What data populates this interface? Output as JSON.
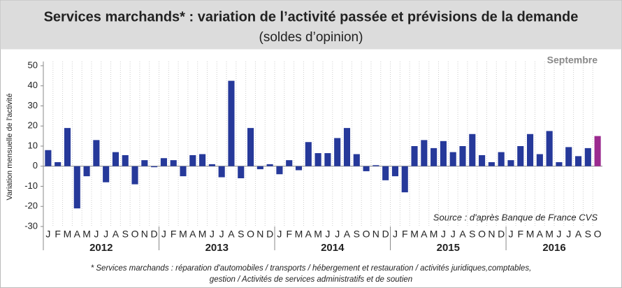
{
  "chart_data": {
    "type": "bar",
    "title": "Services marchands* : variation de l’activité passée et prévisions de la demande",
    "subtitle": "(soldes d’opinion)",
    "annotation": "Septembre",
    "ylabel": "Variation mensuelle de l'activité",
    "source": "Source : d'après Banque de France CVS",
    "footnote": [
      "* Services marchands : réparation d'automobiles / transports / hébergement et restauration / activités juridiques,comptables,",
      "gestion / Activités de services administratifs et de soutien"
    ],
    "categories": [
      "J",
      "F",
      "M",
      "A",
      "M",
      "J",
      "J",
      "A",
      "S",
      "O",
      "N",
      "D",
      "J",
      "F",
      "M",
      "A",
      "M",
      "J",
      "J",
      "A",
      "S",
      "O",
      "N",
      "D",
      "J",
      "F",
      "M",
      "A",
      "M",
      "J",
      "J",
      "A",
      "S",
      "O",
      "N",
      "D",
      "J",
      "F",
      "M",
      "A",
      "M",
      "J",
      "J",
      "A",
      "S",
      "O",
      "N",
      "D",
      "J",
      "F",
      "M",
      "A",
      "M",
      "J",
      "J",
      "A",
      "S",
      "O"
    ],
    "years": [
      "2012",
      "2013",
      "2014",
      "2015",
      "2016"
    ],
    "values": [
      8,
      2,
      19,
      -21,
      -5,
      13,
      -8,
      7,
      5.5,
      -9,
      3,
      -0.5,
      4,
      3,
      -5,
      5.5,
      6,
      1,
      -5.5,
      42.5,
      -6,
      19,
      -1.5,
      1,
      -4,
      3,
      -2,
      12,
      6.5,
      6.5,
      14,
      19,
      6,
      -2.5,
      0.5,
      -7,
      -5,
      -13,
      10,
      13,
      9,
      12.5,
      7,
      10,
      16,
      5.5,
      2,
      7,
      3,
      10,
      16,
      6,
      17.5,
      2,
      9.5,
      5,
      9,
      15
    ],
    "colors": [
      "#26399a",
      "#26399a",
      "#26399a",
      "#26399a",
      "#26399a",
      "#26399a",
      "#26399a",
      "#26399a",
      "#26399a",
      "#26399a",
      "#26399a",
      "#26399a",
      "#26399a",
      "#26399a",
      "#26399a",
      "#26399a",
      "#26399a",
      "#26399a",
      "#26399a",
      "#26399a",
      "#26399a",
      "#26399a",
      "#26399a",
      "#26399a",
      "#26399a",
      "#26399a",
      "#26399a",
      "#26399a",
      "#26399a",
      "#26399a",
      "#26399a",
      "#26399a",
      "#26399a",
      "#26399a",
      "#26399a",
      "#26399a",
      "#26399a",
      "#26399a",
      "#26399a",
      "#26399a",
      "#26399a",
      "#26399a",
      "#26399a",
      "#26399a",
      "#26399a",
      "#26399a",
      "#26399a",
      "#26399a",
      "#26399a",
      "#26399a",
      "#26399a",
      "#26399a",
      "#26399a",
      "#26399a",
      "#26399a",
      "#26399a",
      "#26399a",
      "#9b2a8f"
    ],
    "ylim": [
      -30,
      50
    ],
    "yticks": [
      -30,
      -20,
      -10,
      0,
      10,
      20,
      30,
      40,
      50
    ],
    "grid": true
  }
}
